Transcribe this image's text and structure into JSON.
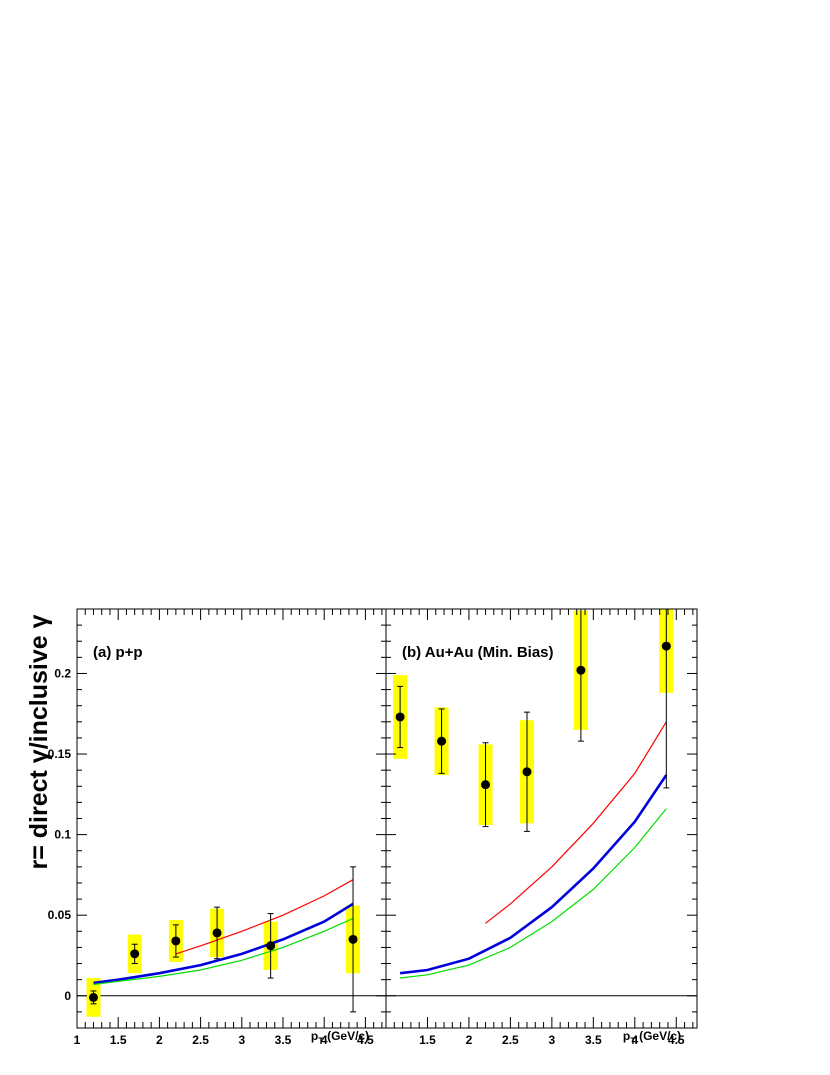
{
  "figure": {
    "ylabel": "r= direct γ/inclusive γ"
  },
  "chart_data": [
    {
      "type": "scatter",
      "panel_label": "(a) p+p",
      "xlabel_main": "p",
      "xlabel_sub": "T",
      "xlabel_unit": " (GeV/c)",
      "xlim": [
        1.0,
        4.75
      ],
      "ylim": [
        -0.02,
        0.24
      ],
      "x_ticks": [
        "1",
        "1.5",
        "2",
        "2.5",
        "3",
        "3.5",
        "4",
        "4.5"
      ],
      "x_tick_values": [
        1,
        1.5,
        2,
        2.5,
        3,
        3.5,
        4,
        4.5
      ],
      "y_ticks": [
        "0",
        "0.05",
        "0.1",
        "0.15",
        "0.2"
      ],
      "y_tick_values": [
        0,
        0.05,
        0.1,
        0.15,
        0.2
      ],
      "zero_line": true,
      "points": [
        {
          "x": 1.2,
          "y": -0.001,
          "stat": 0.004,
          "sys": 0.012
        },
        {
          "x": 1.7,
          "y": 0.026,
          "stat": 0.006,
          "sys": 0.012
        },
        {
          "x": 2.2,
          "y": 0.034,
          "stat": 0.01,
          "sys": 0.013
        },
        {
          "x": 2.7,
          "y": 0.039,
          "stat": 0.016,
          "sys": 0.015
        },
        {
          "x": 3.35,
          "y": 0.031,
          "stat": 0.02,
          "sys": 0.015
        },
        {
          "x": 4.35,
          "y": 0.035,
          "stat": 0.045,
          "sys": 0.021
        }
      ],
      "curves": [
        {
          "color": "#ff0000",
          "width": 1.2,
          "x": [
            2.2,
            2.5,
            3.0,
            3.5,
            4.0,
            4.35
          ],
          "y": [
            0.026,
            0.031,
            0.04,
            0.05,
            0.062,
            0.072
          ]
        },
        {
          "color": "#0000dd",
          "width": 2.6,
          "x": [
            1.2,
            1.5,
            2.0,
            2.5,
            3.0,
            3.5,
            4.0,
            4.35
          ],
          "y": [
            0.008,
            0.01,
            0.014,
            0.019,
            0.026,
            0.035,
            0.046,
            0.057
          ]
        },
        {
          "color": "#00dd00",
          "width": 1.2,
          "x": [
            1.2,
            1.5,
            2.0,
            2.5,
            3.0,
            3.5,
            4.0,
            4.35
          ],
          "y": [
            0.007,
            0.009,
            0.012,
            0.016,
            0.022,
            0.03,
            0.04,
            0.048
          ]
        }
      ]
    },
    {
      "type": "scatter",
      "panel_label": "(b) Au+Au (Min. Bias)",
      "xlabel_main": "p",
      "xlabel_sub": "T",
      "xlabel_unit": " (GeV/c)",
      "xlim": [
        1.0,
        4.75
      ],
      "ylim": [
        -0.02,
        0.24
      ],
      "x_ticks": [
        "1.5",
        "2",
        "2.5",
        "3",
        "3.5",
        "4",
        "4.5"
      ],
      "x_tick_values": [
        1.5,
        2,
        2.5,
        3,
        3.5,
        4,
        4.5
      ],
      "zero_line": true,
      "points": [
        {
          "x": 1.17,
          "y": 0.173,
          "stat": 0.019,
          "sys": 0.026
        },
        {
          "x": 1.67,
          "y": 0.158,
          "stat": 0.02,
          "sys": 0.021
        },
        {
          "x": 2.2,
          "y": 0.131,
          "stat": 0.026,
          "sys": 0.025
        },
        {
          "x": 2.7,
          "y": 0.139,
          "stat": 0.037,
          "sys": 0.032
        },
        {
          "x": 3.35,
          "y": 0.202,
          "stat": 0.044,
          "sys": 0.037
        },
        {
          "x": 4.38,
          "y": 0.217,
          "stat": 0.088,
          "sys": 0.029
        }
      ],
      "curves": [
        {
          "color": "#ff0000",
          "width": 1.2,
          "x": [
            2.2,
            2.5,
            3.0,
            3.5,
            4.0,
            4.38
          ],
          "y": [
            0.045,
            0.057,
            0.08,
            0.107,
            0.138,
            0.17
          ]
        },
        {
          "color": "#0000dd",
          "width": 2.6,
          "x": [
            1.17,
            1.5,
            2.0,
            2.5,
            3.0,
            3.5,
            4.0,
            4.38
          ],
          "y": [
            0.014,
            0.016,
            0.023,
            0.036,
            0.055,
            0.079,
            0.108,
            0.137
          ]
        },
        {
          "color": "#00dd00",
          "width": 1.2,
          "x": [
            1.17,
            1.5,
            2.0,
            2.5,
            3.0,
            3.5,
            4.0,
            4.38
          ],
          "y": [
            0.011,
            0.013,
            0.019,
            0.03,
            0.046,
            0.066,
            0.092,
            0.116
          ]
        }
      ]
    }
  ]
}
